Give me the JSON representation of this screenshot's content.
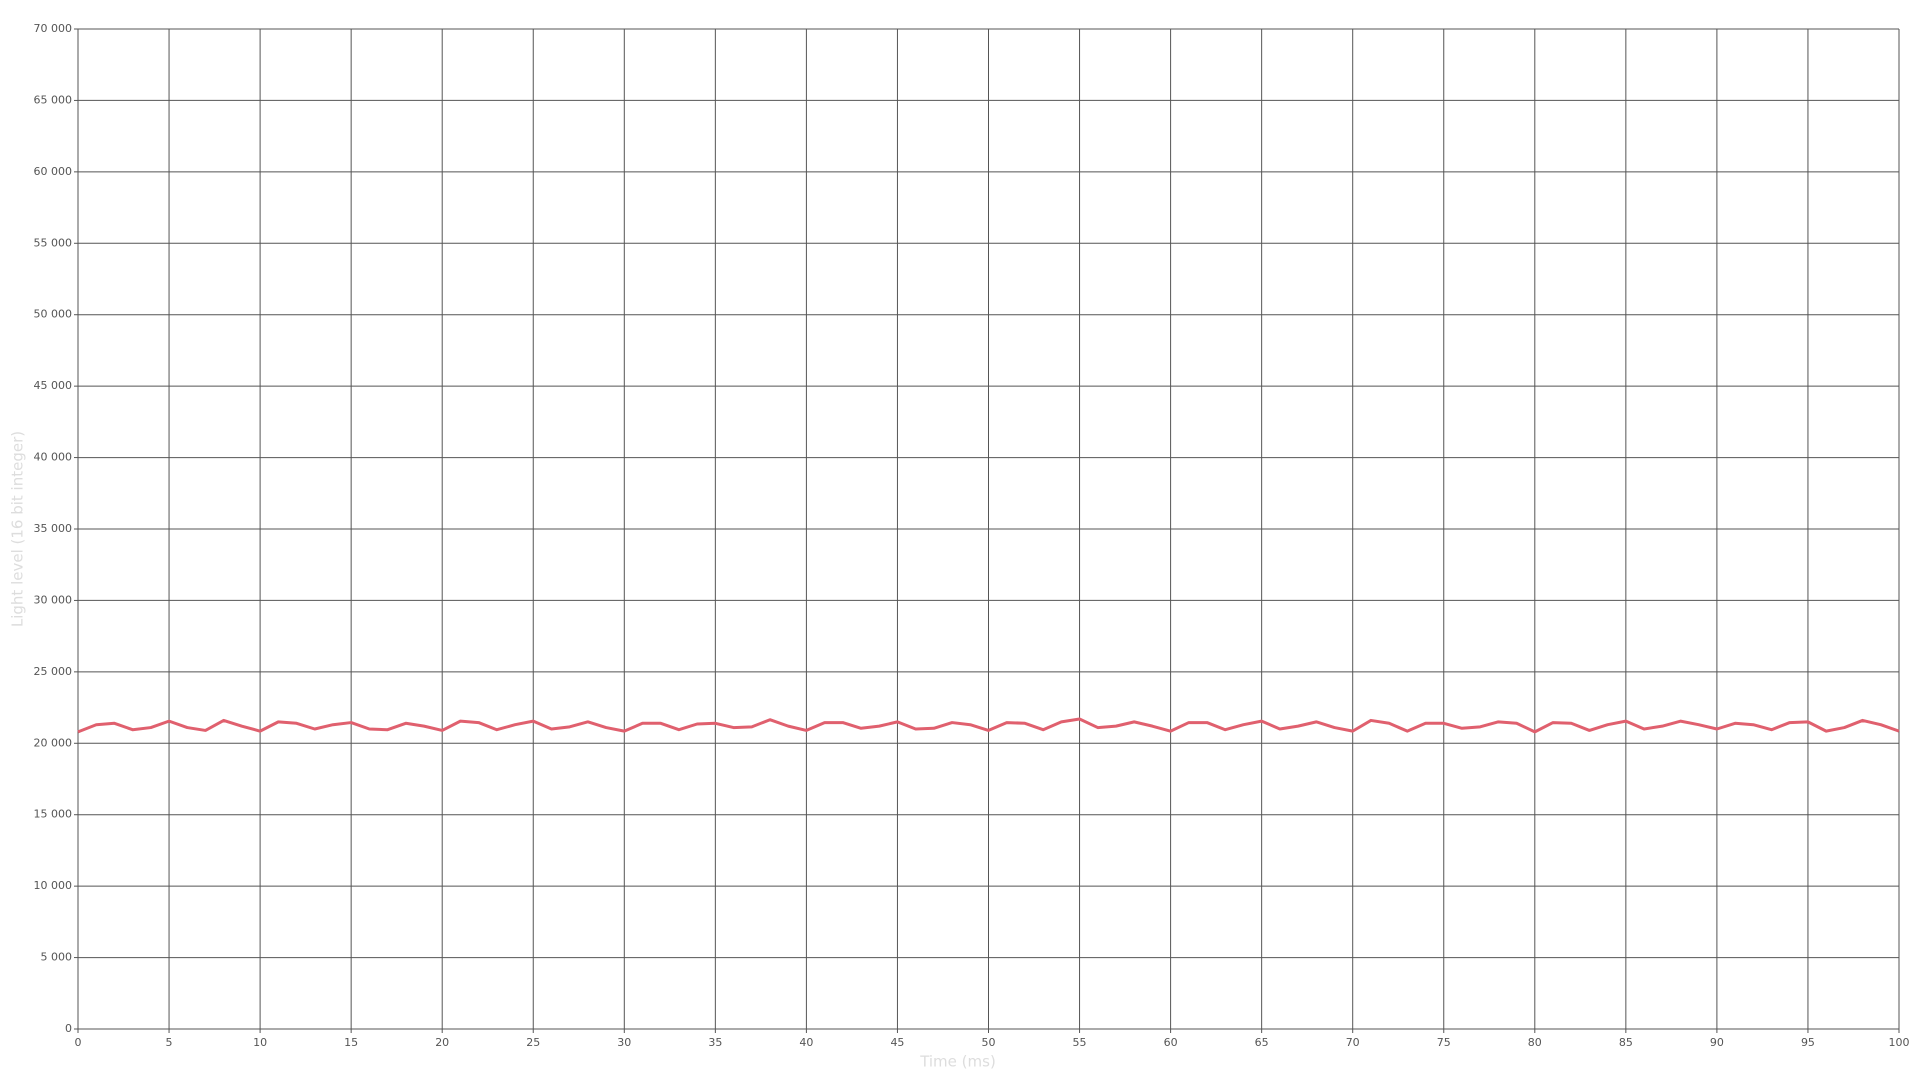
{
  "chart_data": {
    "type": "line",
    "xlabel": "Time (ms)",
    "ylabel": "Light level (16 bit integer)",
    "x": [
      0,
      1,
      2,
      3,
      4,
      5,
      6,
      7,
      8,
      9,
      10,
      11,
      12,
      13,
      14,
      15,
      16,
      17,
      18,
      19,
      20,
      21,
      22,
      23,
      24,
      25,
      26,
      27,
      28,
      29,
      30,
      31,
      32,
      33,
      34,
      35,
      36,
      37,
      38,
      39,
      40,
      41,
      42,
      43,
      44,
      45,
      46,
      47,
      48,
      49,
      50,
      51,
      52,
      53,
      54,
      55,
      56,
      57,
      58,
      59,
      60,
      61,
      62,
      63,
      64,
      65,
      66,
      67,
      68,
      69,
      70,
      71,
      72,
      73,
      74,
      75,
      76,
      77,
      78,
      79,
      80,
      81,
      82,
      83,
      84,
      85,
      86,
      87,
      88,
      89,
      90,
      91,
      92,
      93,
      94,
      95,
      96,
      97,
      98,
      99,
      100
    ],
    "values": [
      20800,
      21300,
      21400,
      20950,
      21100,
      21550,
      21100,
      20900,
      21600,
      21200,
      20850,
      21500,
      21400,
      21000,
      21300,
      21450,
      21000,
      20950,
      21400,
      21200,
      20900,
      21550,
      21450,
      20950,
      21300,
      21550,
      21000,
      21150,
      21500,
      21100,
      20850,
      21400,
      21400,
      20950,
      21350,
      21400,
      21100,
      21150,
      21650,
      21200,
      20900,
      21450,
      21450,
      21050,
      21200,
      21500,
      21000,
      21050,
      21450,
      21300,
      20900,
      21450,
      21400,
      20950,
      21500,
      21700,
      21100,
      21200,
      21500,
      21200,
      20850,
      21450,
      21450,
      20950,
      21300,
      21550,
      21000,
      21200,
      21500,
      21100,
      20850,
      21600,
      21400,
      20850,
      21400,
      21400,
      21050,
      21150,
      21500,
      21400,
      20800,
      21450,
      21400,
      20900,
      21300,
      21550,
      21000,
      21200,
      21550,
      21300,
      21000,
      21400,
      21300,
      20950,
      21450,
      21500,
      20850,
      21100,
      21600,
      21300,
      20850
    ],
    "color": "#e0606e",
    "xlim": [
      0,
      100
    ],
    "xticks": [
      0,
      5,
      10,
      15,
      20,
      25,
      30,
      35,
      40,
      45,
      50,
      55,
      60,
      65,
      70,
      75,
      80,
      85,
      90,
      95,
      100
    ],
    "ylim": [
      0,
      70000
    ],
    "yticks": [
      0,
      {
        "value": 5000,
        "label": "5 000"
      },
      {
        "value": 10000,
        "label": "10 000"
      },
      {
        "value": 15000,
        "label": "15 000"
      },
      {
        "value": 20000,
        "label": "20 000"
      },
      {
        "value": 25000,
        "label": "25 000"
      },
      {
        "value": 30000,
        "label": "30 000"
      },
      {
        "value": 35000,
        "label": "35 000"
      },
      {
        "value": 40000,
        "label": "40 000"
      },
      {
        "value": 45000,
        "label": "45 000"
      },
      {
        "value": 50000,
        "label": "50 000"
      },
      {
        "value": 55000,
        "label": "55 000"
      },
      {
        "value": 60000,
        "label": "60 000"
      },
      {
        "value": 65000,
        "label": "65 000"
      },
      {
        "value": 70000,
        "label": "70 000"
      }
    ],
    "grid": true
  }
}
